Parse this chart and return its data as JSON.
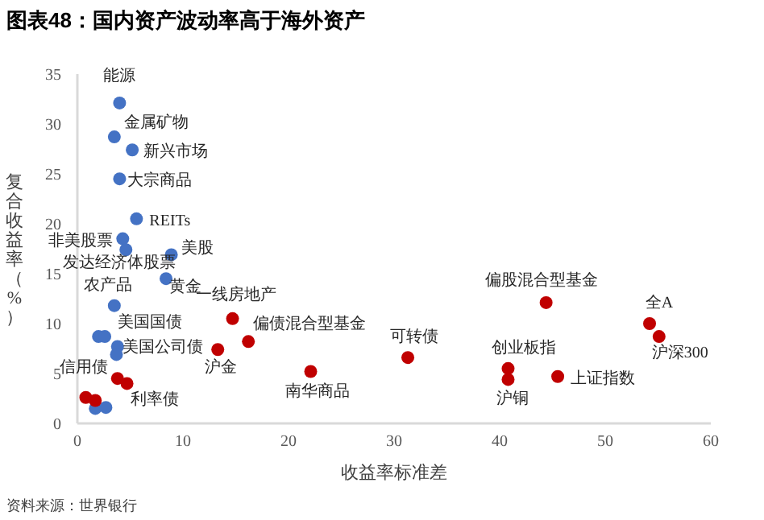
{
  "chart_data": {
    "type": "scatter",
    "title": "图表48：国内资产波动率高于海外资产",
    "xlabel": "收益率标准差",
    "ylabel": "复合收益率（%）",
    "xlim": [
      0,
      60
    ],
    "ylim": [
      0,
      35
    ],
    "xticks": [
      0,
      10,
      20,
      30,
      40,
      50,
      60
    ],
    "yticks": [
      0,
      5,
      10,
      15,
      20,
      25,
      30,
      35
    ],
    "grid": false,
    "marker": "circle",
    "series": [
      {
        "color": "#4472c4",
        "x": [
          4.0,
          3.5,
          5.2,
          4.0,
          5.6,
          4.3,
          4.6,
          8.9,
          8.4,
          3.5,
          2.0,
          2.6,
          3.8,
          3.7,
          1.7,
          2.7
        ],
        "values": [
          32.1,
          28.7,
          27.4,
          24.5,
          20.5,
          18.5,
          17.4,
          16.9,
          14.5,
          11.8,
          8.7,
          8.7,
          7.7,
          6.9,
          1.5,
          1.6
        ]
      },
      {
        "color": "#c00000",
        "x": [
          0.8,
          1.7,
          3.8,
          4.7,
          14.7,
          16.2,
          13.3,
          22.1,
          31.3,
          44.4,
          54.2,
          55.1,
          40.8,
          40.8,
          45.5
        ],
        "values": [
          2.6,
          2.3,
          4.5,
          4.0,
          10.5,
          8.2,
          7.4,
          5.2,
          6.6,
          12.1,
          10.0,
          8.7,
          5.5,
          4.4,
          4.7
        ]
      }
    ],
    "annotations": [
      {
        "text": "能源",
        "x": 4.0,
        "y": 32.1
      },
      {
        "text": "金属矿物",
        "x": 3.5,
        "y": 28.7
      },
      {
        "text": "新兴市场",
        "x": 5.2,
        "y": 27.4
      },
      {
        "text": "大宗商品",
        "x": 4.0,
        "y": 24.5
      },
      {
        "text": "REITs",
        "x": 5.6,
        "y": 20.5
      },
      {
        "text": "非美股票",
        "x": 4.3,
        "y": 18.5
      },
      {
        "text": "发达经济体股票",
        "x": 4.6,
        "y": 17.4
      },
      {
        "text": "美股",
        "x": 8.9,
        "y": 16.9
      },
      {
        "text": "黄金",
        "x": 8.4,
        "y": 14.5
      },
      {
        "text": "农产品",
        "x": 3.5,
        "y": 11.8
      },
      {
        "text": "美国国债",
        "x": 2.6,
        "y": 8.7
      },
      {
        "text": "美国公司债",
        "x": 3.8,
        "y": 7.7
      },
      {
        "text": "信用债",
        "x": 3.8,
        "y": 4.5
      },
      {
        "text": "利率债",
        "x": 4.7,
        "y": 4.0
      },
      {
        "text": "一线房地产",
        "x": 14.7,
        "y": 10.5
      },
      {
        "text": "偏债混合型基金",
        "x": 16.2,
        "y": 8.2
      },
      {
        "text": "沪金",
        "x": 13.3,
        "y": 7.4
      },
      {
        "text": "南华商品",
        "x": 22.1,
        "y": 5.2
      },
      {
        "text": "可转债",
        "x": 31.3,
        "y": 6.6
      },
      {
        "text": "偏股混合型基金",
        "x": 44.4,
        "y": 12.1
      },
      {
        "text": "全A",
        "x": 54.2,
        "y": 10.0
      },
      {
        "text": "沪深300",
        "x": 55.1,
        "y": 8.7
      },
      {
        "text": "创业板指",
        "x": 40.8,
        "y": 5.5
      },
      {
        "text": "沪铜",
        "x": 40.8,
        "y": 4.4
      },
      {
        "text": "上证指数",
        "x": 45.5,
        "y": 4.7
      },
      "资料来源：世界银行"
    ]
  }
}
